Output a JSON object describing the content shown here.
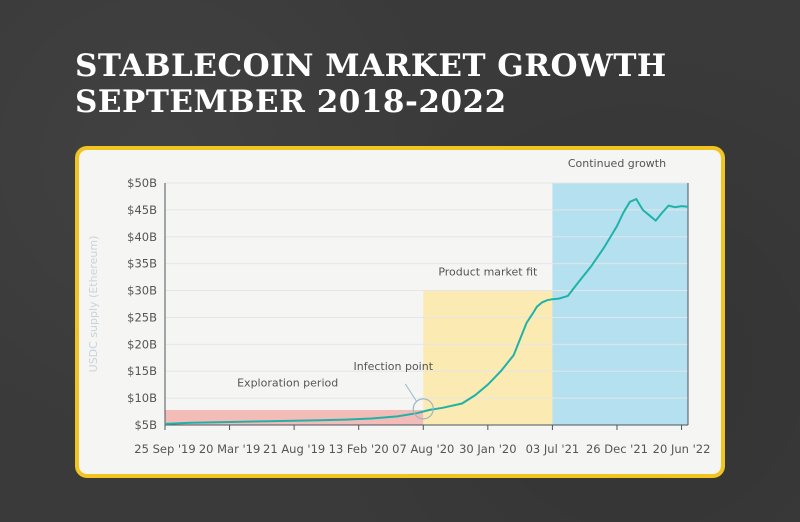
{
  "page": {
    "title_line1": "STABLECOIN MARKET GROWTH",
    "title_line2": "SEPTEMBER 2018-2022"
  },
  "colors": {
    "background": "#3a3a3a",
    "card_border": "#f2c41f",
    "line": "#1fb3a8",
    "exploration": "#f3b2ad",
    "product_market_fit": "#fbe7a6",
    "continued_growth": "#a9dcef"
  },
  "chart_data": {
    "type": "line",
    "ylabel": "USDC supply (Ethereum)",
    "y_ticks": [
      "$5B",
      "$10B",
      "$15B",
      "$20B",
      "$25B",
      "$30B",
      "$35B",
      "$40B",
      "$45B",
      "$50B"
    ],
    "ylim": [
      5,
      50
    ],
    "x_ticks": [
      "25 Sep '19",
      "20 Mar '19",
      "21 Aug '19",
      "13 Feb '20",
      "07 Aug '20",
      "30 Jan '20",
      "03 Jul '21",
      "26 Dec '21",
      "20 Jun '22"
    ],
    "grid": true,
    "phases": [
      {
        "label": "Exploration period",
        "x_start": 0,
        "x_end": 2,
        "y_top": 7.8
      },
      {
        "label": "Product market fit",
        "x_start": 2,
        "x_end": 3,
        "y_top": 30
      },
      {
        "label": "Continued growth",
        "x_start": 3,
        "x_end": 4.05,
        "y_top": 50
      }
    ],
    "annotation": {
      "label": "Infection point",
      "x": 2,
      "y": 8
    },
    "series": [
      {
        "x": [
          0,
          0.2,
          0.4,
          0.6,
          0.8,
          1.0,
          1.2,
          1.4,
          1.6,
          1.8,
          1.95,
          2.05,
          2.15,
          2.3,
          2.4,
          2.5,
          2.6,
          2.7,
          2.75,
          2.8,
          2.85,
          2.88,
          2.92,
          2.96,
          3.0,
          3.05,
          3.12,
          3.2,
          3.3,
          3.4,
          3.5,
          3.55,
          3.6,
          3.65,
          3.7,
          3.75,
          3.8,
          3.85,
          3.9,
          3.95,
          4.0,
          4.05
        ],
        "y": [
          5.2,
          5.4,
          5.5,
          5.6,
          5.7,
          5.8,
          5.9,
          6.0,
          6.2,
          6.6,
          7.2,
          7.8,
          8.2,
          9.0,
          10.5,
          12.5,
          15.0,
          18.0,
          21.0,
          24.0,
          25.8,
          27.0,
          27.8,
          28.2,
          28.4,
          28.5,
          29.0,
          31.5,
          34.5,
          38.0,
          42.0,
          44.5,
          46.5,
          47.0,
          45.0,
          44.0,
          43.0,
          44.5,
          45.8,
          45.5,
          45.7,
          45.6
        ]
      }
    ]
  }
}
